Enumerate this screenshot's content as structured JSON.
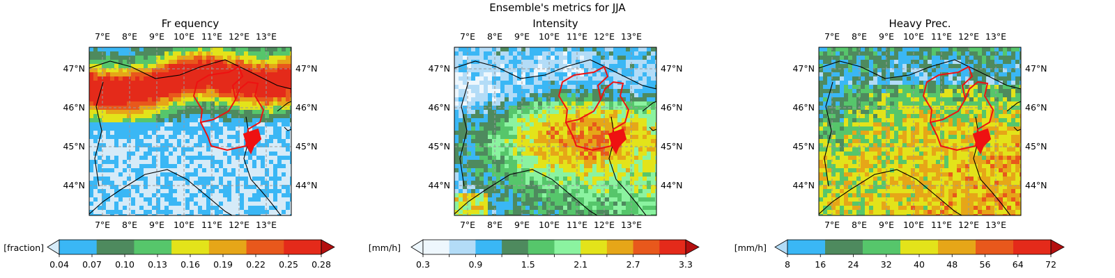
{
  "suptitle": "Ensemble's metrics for JJA",
  "lon_labels": [
    "7°E",
    "8°E",
    "9°E",
    "10°E",
    "11°E",
    "12°E",
    "13°E"
  ],
  "lat_labels": [
    "47°N",
    "46°N",
    "45°N",
    "44°N"
  ],
  "panels": [
    {
      "title": "Fr equency",
      "unit": "[fraction]",
      "ticks": [
        "0.04",
        "0.07",
        "0.10",
        "0.13",
        "0.16",
        "0.19",
        "0.22",
        "0.25",
        "0.28"
      ],
      "colors": [
        "#d6ebf8",
        "#3ab7f5",
        "#4e8a5e",
        "#56c66b",
        "#e3e31a",
        "#e6a618",
        "#e8581c",
        "#e42a1a",
        "#b40f0f"
      ],
      "extend_min": true,
      "extend_max": true
    },
    {
      "title": "Intensity",
      "unit": "[mm/h]",
      "ticks": [
        "0.3",
        "",
        "0.9",
        "",
        "1.5",
        "",
        "2.1",
        "",
        "2.7",
        "",
        "3.3"
      ],
      "colors": [
        "#eef7fd",
        "#eef7fd",
        "#b3dcf7",
        "#3ab7f5",
        "#4e8a5e",
        "#56c66b",
        "#8bf3a0",
        "#e3e31a",
        "#e6a618",
        "#e8581c",
        "#e42a1a",
        "#b40f0f"
      ],
      "extend_min": true,
      "extend_max": true
    },
    {
      "title": "Heavy Prec.",
      "unit": "[mm/h]",
      "ticks": [
        "8",
        "16",
        "24",
        "32",
        "40",
        "48",
        "56",
        "64",
        "72"
      ],
      "colors": [
        "#b3dcf7",
        "#3ab7f5",
        "#4e8a5e",
        "#56c66b",
        "#e3e31a",
        "#e6a618",
        "#e8581c",
        "#e42a1a",
        "#b40f0f"
      ],
      "extend_min": true,
      "extend_max": true
    }
  ]
}
